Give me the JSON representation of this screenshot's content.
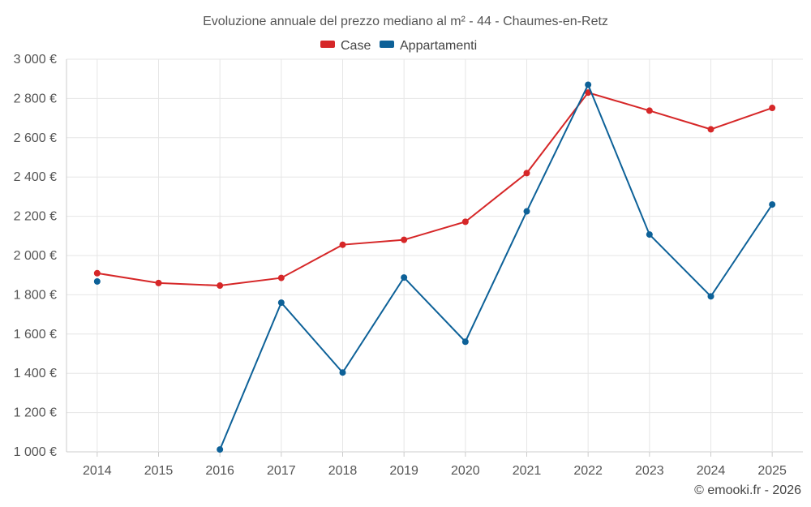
{
  "chart_data": {
    "type": "line",
    "title": "Evoluzione annuale del prezzo mediano al m² - 44 - Chaumes-en-Retz",
    "categories": [
      "2014",
      "2015",
      "2016",
      "2017",
      "2018",
      "2019",
      "2020",
      "2021",
      "2022",
      "2023",
      "2024",
      "2025"
    ],
    "series": [
      {
        "name": "Case",
        "color": "#d62728",
        "values": [
          1910,
          1860,
          1847,
          1886,
          2055,
          2080,
          2172,
          2420,
          2830,
          2738,
          2643,
          2752
        ]
      },
      {
        "name": "Appartamenti",
        "color": "#0d6198",
        "values": [
          1868,
          null,
          1012,
          1760,
          1404,
          1888,
          1561,
          2225,
          2870,
          2107,
          1792,
          2260
        ]
      }
    ],
    "ylim": [
      1000,
      3000
    ],
    "yticks": [
      1000,
      1200,
      1400,
      1600,
      1800,
      2000,
      2200,
      2400,
      2600,
      2800,
      3000
    ],
    "ytick_labels": [
      "1 000 €",
      "1 200 €",
      "1 400 €",
      "1 600 €",
      "1 800 €",
      "2 000 €",
      "2 200 €",
      "2 400 €",
      "2 600 €",
      "2 800 €",
      "3 000 €"
    ],
    "xlabel": "",
    "ylabel": "",
    "legend_position": "top-center",
    "grid": true,
    "credit": "© emooki.fr - 2026"
  }
}
